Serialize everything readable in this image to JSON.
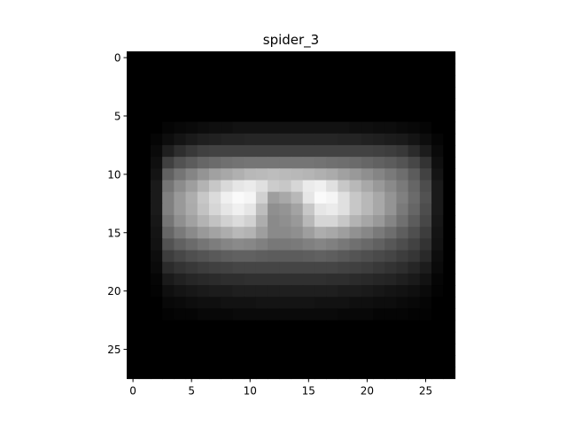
{
  "chart_data": {
    "type": "heatmap",
    "title": "spider_3",
    "xlabel": "",
    "ylabel": "",
    "colormap": "gray",
    "value_range": [
      0,
      1
    ],
    "grid": false,
    "legend": "none",
    "x_ticks": [
      0,
      5,
      10,
      15,
      20,
      25
    ],
    "y_ticks": [
      0,
      5,
      10,
      15,
      20,
      25
    ],
    "xlim": [
      -0.5,
      27.5
    ],
    "ylim": [
      27.5,
      -0.5
    ],
    "shape": [
      28,
      28
    ],
    "values": [
      [
        0,
        0,
        0,
        0,
        0,
        0,
        0,
        0,
        0,
        0,
        0,
        0,
        0,
        0,
        0,
        0,
        0,
        0,
        0,
        0,
        0,
        0,
        0,
        0,
        0,
        0,
        0,
        0
      ],
      [
        0,
        0,
        0,
        0,
        0,
        0,
        0,
        0,
        0,
        0,
        0,
        0,
        0,
        0,
        0,
        0,
        0,
        0,
        0,
        0,
        0,
        0,
        0,
        0,
        0,
        0,
        0,
        0
      ],
      [
        0,
        0,
        0,
        0,
        0,
        0,
        0,
        0,
        0,
        0,
        0,
        0,
        0,
        0,
        0,
        0,
        0,
        0,
        0,
        0,
        0,
        0,
        0,
        0,
        0,
        0,
        0,
        0
      ],
      [
        0,
        0,
        0,
        0,
        0,
        0,
        0,
        0,
        0,
        0,
        0,
        0,
        0,
        0,
        0,
        0,
        0,
        0,
        0,
        0,
        0,
        0,
        0,
        0,
        0,
        0,
        0,
        0
      ],
      [
        0,
        0,
        0,
        0,
        0,
        0,
        0,
        0,
        0,
        0,
        0,
        0,
        0,
        0,
        0,
        0,
        0,
        0,
        0,
        0,
        0,
        0,
        0,
        0,
        0,
        0,
        0,
        0
      ],
      [
        0,
        0,
        0,
        0,
        0,
        0,
        0,
        0,
        0,
        0,
        0,
        0,
        0,
        0,
        0,
        0,
        0,
        0,
        0,
        0,
        0,
        0,
        0,
        0,
        0,
        0,
        0,
        0
      ],
      [
        0,
        0,
        0,
        0.02,
        0.03,
        0.04,
        0.05,
        0.06,
        0.06,
        0.07,
        0.07,
        0.07,
        0.07,
        0.07,
        0.07,
        0.07,
        0.07,
        0.07,
        0.07,
        0.06,
        0.06,
        0.05,
        0.05,
        0.04,
        0.03,
        0.02,
        0,
        0
      ],
      [
        0,
        0,
        0.02,
        0.05,
        0.08,
        0.1,
        0.12,
        0.13,
        0.14,
        0.14,
        0.15,
        0.15,
        0.15,
        0.15,
        0.15,
        0.15,
        0.15,
        0.15,
        0.14,
        0.14,
        0.13,
        0.12,
        0.11,
        0.1,
        0.08,
        0.05,
        0.02,
        0
      ],
      [
        0,
        0,
        0.04,
        0.12,
        0.18,
        0.22,
        0.25,
        0.26,
        0.26,
        0.26,
        0.26,
        0.26,
        0.26,
        0.26,
        0.26,
        0.26,
        0.26,
        0.26,
        0.26,
        0.26,
        0.26,
        0.25,
        0.24,
        0.22,
        0.17,
        0.11,
        0.04,
        0
      ],
      [
        0,
        0,
        0.06,
        0.25,
        0.32,
        0.36,
        0.4,
        0.42,
        0.44,
        0.45,
        0.46,
        0.46,
        0.46,
        0.46,
        0.46,
        0.46,
        0.45,
        0.44,
        0.43,
        0.42,
        0.4,
        0.38,
        0.36,
        0.33,
        0.28,
        0.2,
        0.06,
        0
      ],
      [
        0,
        0,
        0.08,
        0.38,
        0.46,
        0.52,
        0.58,
        0.63,
        0.66,
        0.69,
        0.72,
        0.73,
        0.74,
        0.73,
        0.72,
        0.71,
        0.69,
        0.67,
        0.63,
        0.6,
        0.56,
        0.52,
        0.48,
        0.43,
        0.36,
        0.26,
        0.08,
        0
      ],
      [
        0,
        0,
        0.1,
        0.46,
        0.55,
        0.62,
        0.7,
        0.78,
        0.85,
        0.9,
        0.92,
        0.88,
        0.8,
        0.78,
        0.84,
        0.92,
        0.94,
        0.88,
        0.78,
        0.72,
        0.66,
        0.6,
        0.54,
        0.48,
        0.4,
        0.3,
        0.1,
        0
      ],
      [
        0,
        0,
        0.1,
        0.5,
        0.6,
        0.68,
        0.78,
        0.86,
        0.94,
        0.98,
        0.96,
        0.82,
        0.62,
        0.66,
        0.72,
        0.9,
        0.98,
        0.96,
        0.88,
        0.78,
        0.72,
        0.66,
        0.58,
        0.5,
        0.42,
        0.32,
        0.1,
        0
      ],
      [
        0,
        0,
        0.1,
        0.5,
        0.6,
        0.67,
        0.76,
        0.84,
        0.9,
        0.94,
        0.9,
        0.74,
        0.56,
        0.58,
        0.64,
        0.78,
        0.9,
        0.92,
        0.88,
        0.78,
        0.72,
        0.66,
        0.58,
        0.48,
        0.4,
        0.3,
        0.1,
        0
      ],
      [
        0,
        0,
        0.09,
        0.46,
        0.56,
        0.63,
        0.7,
        0.76,
        0.82,
        0.86,
        0.82,
        0.68,
        0.54,
        0.56,
        0.6,
        0.72,
        0.84,
        0.84,
        0.78,
        0.7,
        0.65,
        0.6,
        0.52,
        0.44,
        0.36,
        0.28,
        0.09,
        0
      ],
      [
        0,
        0,
        0.08,
        0.4,
        0.48,
        0.54,
        0.6,
        0.64,
        0.68,
        0.72,
        0.7,
        0.62,
        0.54,
        0.54,
        0.56,
        0.62,
        0.68,
        0.66,
        0.62,
        0.57,
        0.53,
        0.48,
        0.43,
        0.37,
        0.31,
        0.24,
        0.08,
        0
      ],
      [
        0,
        0,
        0.07,
        0.32,
        0.38,
        0.42,
        0.46,
        0.49,
        0.52,
        0.54,
        0.53,
        0.5,
        0.47,
        0.47,
        0.48,
        0.5,
        0.52,
        0.5,
        0.47,
        0.44,
        0.41,
        0.38,
        0.34,
        0.3,
        0.26,
        0.2,
        0.07,
        0
      ],
      [
        0,
        0,
        0.05,
        0.24,
        0.28,
        0.31,
        0.33,
        0.35,
        0.37,
        0.38,
        0.38,
        0.37,
        0.36,
        0.36,
        0.36,
        0.37,
        0.38,
        0.37,
        0.35,
        0.33,
        0.31,
        0.29,
        0.27,
        0.24,
        0.21,
        0.16,
        0.05,
        0
      ],
      [
        0,
        0,
        0.04,
        0.17,
        0.2,
        0.22,
        0.24,
        0.25,
        0.26,
        0.27,
        0.27,
        0.27,
        0.27,
        0.27,
        0.27,
        0.27,
        0.27,
        0.27,
        0.26,
        0.25,
        0.24,
        0.22,
        0.2,
        0.18,
        0.15,
        0.11,
        0.04,
        0
      ],
      [
        0,
        0,
        0.02,
        0.1,
        0.13,
        0.15,
        0.16,
        0.17,
        0.18,
        0.18,
        0.19,
        0.19,
        0.19,
        0.19,
        0.19,
        0.19,
        0.19,
        0.18,
        0.18,
        0.17,
        0.16,
        0.15,
        0.14,
        0.12,
        0.1,
        0.07,
        0.02,
        0
      ],
      [
        0,
        0,
        0.01,
        0.06,
        0.08,
        0.09,
        0.1,
        0.11,
        0.11,
        0.12,
        0.12,
        0.12,
        0.12,
        0.12,
        0.12,
        0.12,
        0.12,
        0.12,
        0.11,
        0.11,
        0.1,
        0.09,
        0.08,
        0.07,
        0.06,
        0.04,
        0.01,
        0
      ],
      [
        0,
        0,
        0,
        0.03,
        0.04,
        0.05,
        0.06,
        0.06,
        0.07,
        0.07,
        0.07,
        0.08,
        0.08,
        0.08,
        0.08,
        0.08,
        0.07,
        0.07,
        0.07,
        0.06,
        0.06,
        0.05,
        0.05,
        0.04,
        0.03,
        0.02,
        0,
        0
      ],
      [
        0,
        0,
        0,
        0.01,
        0.02,
        0.02,
        0.03,
        0.03,
        0.03,
        0.04,
        0.04,
        0.04,
        0.04,
        0.04,
        0.04,
        0.04,
        0.04,
        0.04,
        0.03,
        0.03,
        0.03,
        0.02,
        0.02,
        0.02,
        0.01,
        0.01,
        0,
        0
      ],
      [
        0,
        0,
        0,
        0,
        0,
        0,
        0,
        0,
        0,
        0,
        0,
        0,
        0,
        0,
        0,
        0,
        0,
        0,
        0,
        0,
        0,
        0,
        0,
        0,
        0,
        0,
        0,
        0
      ],
      [
        0,
        0,
        0,
        0,
        0,
        0,
        0,
        0,
        0,
        0,
        0,
        0,
        0,
        0,
        0,
        0,
        0,
        0,
        0,
        0,
        0,
        0,
        0,
        0,
        0,
        0,
        0,
        0
      ],
      [
        0,
        0,
        0,
        0,
        0,
        0,
        0,
        0,
        0,
        0,
        0,
        0,
        0,
        0,
        0,
        0,
        0,
        0,
        0,
        0,
        0,
        0,
        0,
        0,
        0,
        0,
        0,
        0
      ],
      [
        0,
        0,
        0,
        0,
        0,
        0,
        0,
        0,
        0,
        0,
        0,
        0,
        0,
        0,
        0,
        0,
        0,
        0,
        0,
        0,
        0,
        0,
        0,
        0,
        0,
        0,
        0,
        0
      ],
      [
        0,
        0,
        0,
        0,
        0,
        0,
        0,
        0,
        0,
        0,
        0,
        0,
        0,
        0,
        0,
        0,
        0,
        0,
        0,
        0,
        0,
        0,
        0,
        0,
        0,
        0,
        0,
        0
      ]
    ]
  }
}
